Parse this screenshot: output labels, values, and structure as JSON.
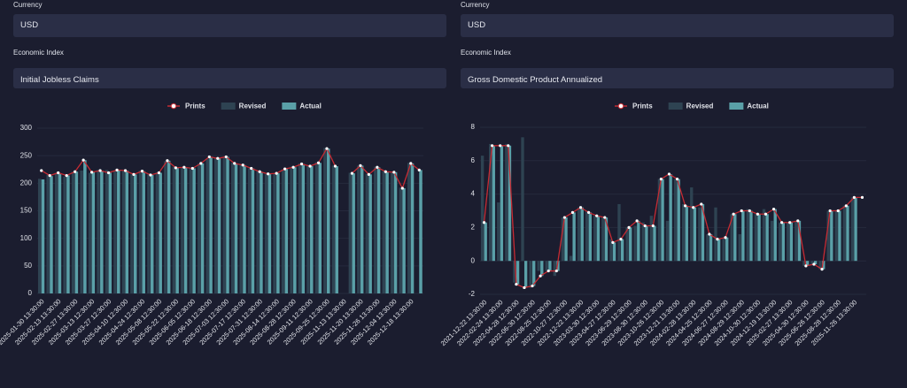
{
  "form": [
    {
      "currency_label": "Currency",
      "currency": "USD",
      "index_label": "Economic Index",
      "index": "Initial Jobless Claims"
    },
    {
      "currency_label": "Currency",
      "currency": "USD",
      "index_label": "Economic Index",
      "index": "Gross Domestic Product Annualized"
    }
  ],
  "chart_data": [
    {
      "type": "bar",
      "ylim": [
        0,
        300
      ],
      "yticks": [
        0,
        50,
        100,
        150,
        200,
        250,
        300
      ],
      "grid": true,
      "categories": [
        "2025-01-30 13:30:00",
        null,
        "2025-02-13 13:30:00",
        null,
        "2025-02-27 13:30:00",
        null,
        "2025-03-13 12:30:00",
        null,
        "2025-03-27 12:30:00",
        null,
        "2025-04-10 12:30:00",
        null,
        "2025-04-24 12:30:00",
        null,
        "2025-05-08 12:30:00",
        null,
        "2025-05-22 12:30:00",
        null,
        "2025-06-05 12:30:00",
        null,
        "2025-06-18 12:30:00",
        null,
        "2025-07-03 12:30:00",
        null,
        "2025-07-17 12:30:00",
        null,
        "2025-07-31 12:30:00",
        null,
        "2025-08-14 12:30:00",
        null,
        "2025-08-28 12:30:00",
        null,
        "2025-09-11 12:30:00",
        null,
        "2025-09-25 12:30:00",
        null,
        "2025-11-13 13:30:00",
        null,
        "2025-11-20 13:30:00",
        null,
        "2025-11-26 13:30:00",
        null,
        "2025-12-04 13:30:00",
        null,
        "2025-12-18 13:30:00",
        null
      ],
      "series": [
        {
          "name": "Prints",
          "kind": "line",
          "color": "#c62b33",
          "values": [
            223,
            214,
            219,
            214,
            221,
            242,
            220,
            223,
            219,
            224,
            223,
            216,
            222,
            215,
            219,
            241,
            228,
            229,
            227,
            236,
            248,
            245,
            248,
            236,
            233,
            227,
            221,
            217,
            218,
            226,
            229,
            235,
            231,
            237,
            263,
            231,
            null,
            218,
            232,
            216,
            229,
            221,
            220,
            191,
            236,
            224
          ]
        },
        {
          "name": "Revised",
          "kind": "bar",
          "color": "#2e4352",
          "values": [
            208,
            215,
            219,
            212,
            221,
            223,
            219,
            224,
            224,
            223,
            222,
            216,
            223,
            216,
            220,
            240,
            230,
            228,
            228,
            236,
            245,
            246,
            247,
            237,
            234,
            227,
            222,
            218,
            218,
            225,
            230,
            236,
            232,
            238,
            264,
            232,
            null,
            219,
            232,
            217,
            230,
            222,
            221,
            192,
            237,
            null
          ]
        },
        {
          "name": "Actual",
          "kind": "bar",
          "color": "#5aa0a8",
          "values": [
            207,
            213,
            218,
            214,
            221,
            242,
            220,
            223,
            219,
            224,
            223,
            216,
            222,
            215,
            219,
            241,
            228,
            229,
            227,
            236,
            248,
            245,
            248,
            236,
            233,
            227,
            221,
            217,
            218,
            226,
            229,
            235,
            231,
            237,
            263,
            231,
            null,
            218,
            232,
            216,
            229,
            221,
            220,
            191,
            236,
            224
          ]
        }
      ]
    },
    {
      "type": "bar",
      "ylim": [
        -2,
        8
      ],
      "yticks": [
        -2,
        0,
        2,
        4,
        6,
        8
      ],
      "grid": true,
      "categories": [
        "2021-12-22 13:30:00",
        null,
        "2022-02-24 13:30:00",
        null,
        "2022-04-28 12:30:00",
        null,
        "2022-06-30 12:30:00",
        null,
        "2022-08-25 12:30:00",
        null,
        "2022-10-27 12:30:00",
        null,
        "2022-12-22 13:30:00",
        null,
        "2023-03-30 12:30:00",
        null,
        "2023-04-27 12:30:00",
        null,
        "2023-06-29 12:30:00",
        null,
        "2023-08-30 12:30:00",
        null,
        "2023-10-26 12:30:00",
        null,
        "2023-12-21 13:30:00",
        null,
        "2024-02-28 13:30:00",
        null,
        "2024-04-25 12:30:00",
        null,
        "2024-06-27 12:30:00",
        null,
        "2024-08-29 12:30:00",
        null,
        "2024-10-30 12:30:00",
        null,
        "2024-12-19 13:30:00",
        null,
        "2025-02-27 13:30:00",
        null,
        "2025-04-30 12:30:00",
        null,
        "2025-06-26 12:30:00",
        null,
        "2025-08-28 12:30:00",
        null,
        "2025-11-26 13:30:00",
        null
      ],
      "series": [
        {
          "name": "Prints",
          "kind": "line",
          "color": "#c62b33",
          "values": [
            2.3,
            6.9,
            6.9,
            6.9,
            -1.4,
            -1.6,
            -1.5,
            -0.9,
            -0.6,
            -0.6,
            2.6,
            2.9,
            3.2,
            2.9,
            2.7,
            2.6,
            1.1,
            1.3,
            2.0,
            2.4,
            2.1,
            2.1,
            4.9,
            5.2,
            4.9,
            3.3,
            3.2,
            3.4,
            1.6,
            1.3,
            1.4,
            2.8,
            3.0,
            3.0,
            2.8,
            2.8,
            3.1,
            2.3,
            2.3,
            2.4,
            -0.3,
            -0.2,
            -0.5,
            3.0,
            3.0,
            3.3,
            3.8,
            3.8
          ]
        },
        {
          "name": "Revised",
          "kind": "bar",
          "color": "#2e4352",
          "values": [
            6.3,
            7.0,
            3.5,
            7.0,
            -1.3,
            7.4,
            -1.6,
            -0.6,
            -0.6,
            -0.9,
            2.6,
            0.3,
            3.2,
            3.0,
            2.7,
            2.6,
            1.3,
            3.4,
            2.0,
            2.1,
            2.3,
            2.7,
            4.9,
            2.4,
            4.9,
            3.4,
            4.4,
            3.2,
            1.6,
            3.2,
            1.4,
            2.8,
            1.6,
            3.1,
            2.8,
            3.1,
            2.4,
            2.3,
            2.3,
            2.4,
            -0.3,
            -0.2,
            -0.5,
            3.0,
            3.0,
            3.3,
            3.8,
            null
          ]
        },
        {
          "name": "Actual",
          "kind": "bar",
          "color": "#5aa0a8",
          "values": [
            2.3,
            6.9,
            6.9,
            6.9,
            -1.4,
            -1.6,
            -1.5,
            -0.9,
            -0.6,
            -0.6,
            2.6,
            2.9,
            3.2,
            2.9,
            2.7,
            2.6,
            1.1,
            1.3,
            2.0,
            2.4,
            2.1,
            2.1,
            4.9,
            5.2,
            4.9,
            3.3,
            3.2,
            3.4,
            1.6,
            1.3,
            1.4,
            2.8,
            3.0,
            3.0,
            2.8,
            2.8,
            3.1,
            2.3,
            2.3,
            2.4,
            -0.3,
            -0.2,
            -0.5,
            3.0,
            3.0,
            3.3,
            3.8,
            null
          ]
        }
      ]
    }
  ]
}
